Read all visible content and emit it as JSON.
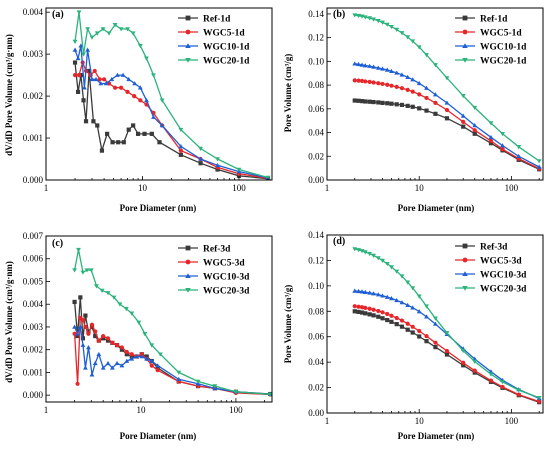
{
  "chart_data": [
    {
      "type": "line",
      "panel": "(a)",
      "xlabel": "Pore Diameter (nm)",
      "ylabel": "dV/dD Pore Volume (cm³/g·nm)",
      "xscale": "log",
      "xlim": [
        1,
        220
      ],
      "ylim": [
        0,
        0.0041
      ],
      "xticks": [
        1,
        10,
        100
      ],
      "yticks": [
        0,
        0.001,
        0.002,
        0.003,
        0.004
      ],
      "ytick_labels": [
        "0.000",
        "0.001",
        "0.002",
        "0.003",
        "0.004"
      ],
      "legend": "top-right",
      "series": [
        {
          "name": "Ref-1d",
          "color": "#3a3a3a",
          "marker": "square",
          "x": [
            2.0,
            2.15,
            2.3,
            2.45,
            2.6,
            2.8,
            3.1,
            3.4,
            3.8,
            4.3,
            4.9,
            5.6,
            6.4,
            7.2,
            8.0,
            9.0,
            10.5,
            12.5,
            15,
            25,
            40,
            60,
            100,
            200
          ],
          "y": [
            0.0028,
            0.0021,
            0.0025,
            0.0019,
            0.0014,
            0.0026,
            0.0014,
            0.0013,
            0.0007,
            0.0011,
            0.0009,
            0.0009,
            0.0009,
            0.0012,
            0.0013,
            0.0011,
            0.0011,
            0.0011,
            0.0009,
            0.0006,
            0.0004,
            0.00025,
            0.0001,
            3e-05
          ]
        },
        {
          "name": "WGC5-1d",
          "color": "#e8262a",
          "marker": "circle",
          "x": [
            2.0,
            2.2,
            2.4,
            2.6,
            2.9,
            3.2,
            3.6,
            4.0,
            4.5,
            5.2,
            6.0,
            7.0,
            8.2,
            9.5,
            11,
            13,
            16,
            25,
            40,
            60,
            100,
            200
          ],
          "y": [
            0.0025,
            0.0025,
            0.0028,
            0.0026,
            0.0025,
            0.0026,
            0.0024,
            0.0024,
            0.0023,
            0.0022,
            0.0022,
            0.0021,
            0.002,
            0.0019,
            0.0018,
            0.0016,
            0.0013,
            0.0007,
            0.0005,
            0.0003,
            0.00015,
            4e-05
          ]
        },
        {
          "name": "WGC10-1d",
          "color": "#1f5fd6",
          "marker": "triangle-up",
          "x": [
            2.0,
            2.15,
            2.3,
            2.5,
            2.7,
            3.0,
            3.3,
            3.7,
            4.2,
            4.8,
            5.5,
            6.3,
            7.2,
            8.3,
            9.5,
            11,
            13,
            16,
            25,
            40,
            60,
            100,
            200
          ],
          "y": [
            0.0031,
            0.0029,
            0.0032,
            0.0022,
            0.0031,
            0.0024,
            0.0024,
            0.0023,
            0.0023,
            0.0024,
            0.0025,
            0.0025,
            0.0024,
            0.0023,
            0.0022,
            0.0019,
            0.0015,
            0.0013,
            0.0008,
            0.0005,
            0.00035,
            0.0002,
            5e-05
          ]
        },
        {
          "name": "WGC20-1d",
          "color": "#2bb37c",
          "marker": "triangle-down",
          "x": [
            2.0,
            2.2,
            2.45,
            2.7,
            3.0,
            3.4,
            3.9,
            4.5,
            5.2,
            6.0,
            7.0,
            8.0,
            9.5,
            11,
            13,
            16,
            25,
            40,
            60,
            100,
            200
          ],
          "y": [
            0.0033,
            0.004,
            0.003,
            0.0036,
            0.0034,
            0.0035,
            0.0036,
            0.0035,
            0.0037,
            0.0036,
            0.0036,
            0.0035,
            0.0032,
            0.0029,
            0.0025,
            0.0019,
            0.0012,
            0.00075,
            0.0005,
            0.00025,
            6e-05
          ]
        }
      ]
    },
    {
      "type": "line",
      "panel": "(b)",
      "xlabel": "Pore Diameter (nm)",
      "ylabel": "Pore Volume (cm³/g)",
      "xscale": "log",
      "xlim": [
        1,
        220
      ],
      "ylim": [
        0,
        0.145
      ],
      "xticks": [
        1,
        10,
        100
      ],
      "yticks": [
        0,
        0.02,
        0.04,
        0.06,
        0.08,
        0.1,
        0.12,
        0.14
      ],
      "ytick_labels": [
        "0.00",
        "0.02",
        "0.04",
        "0.06",
        "0.08",
        "0.10",
        "0.12",
        "0.14"
      ],
      "legend": "top-right",
      "series": [
        {
          "name": "Ref-1d",
          "color": "#3a3a3a",
          "marker": "square",
          "x": [
            2,
            2.2,
            2.4,
            2.6,
            2.9,
            3.2,
            3.6,
            4,
            4.5,
            5,
            5.7,
            6.5,
            7.5,
            8.5,
            10,
            12,
            15,
            20,
            30,
            40,
            60,
            80,
            120,
            200
          ],
          "y": [
            0.067,
            0.0668,
            0.0665,
            0.0662,
            0.066,
            0.0657,
            0.0654,
            0.065,
            0.0647,
            0.0643,
            0.0638,
            0.0633,
            0.0625,
            0.0617,
            0.0604,
            0.0585,
            0.0558,
            0.052,
            0.045,
            0.039,
            0.031,
            0.025,
            0.017,
            0.009
          ]
        },
        {
          "name": "WGC5-1d",
          "color": "#e8262a",
          "marker": "circle",
          "x": [
            2,
            2.2,
            2.4,
            2.6,
            2.9,
            3.2,
            3.6,
            4,
            4.5,
            5,
            5.7,
            6.5,
            7.5,
            8.5,
            10,
            12,
            15,
            20,
            30,
            40,
            60,
            80,
            120,
            200
          ],
          "y": [
            0.084,
            0.0838,
            0.0835,
            0.0831,
            0.0827,
            0.0822,
            0.0816,
            0.081,
            0.0803,
            0.0795,
            0.0785,
            0.0774,
            0.076,
            0.0745,
            0.0722,
            0.0692,
            0.065,
            0.059,
            0.049,
            0.042,
            0.033,
            0.026,
            0.018,
            0.0095
          ]
        },
        {
          "name": "WGC10-1d",
          "color": "#1f5fd6",
          "marker": "triangle-up",
          "x": [
            2,
            2.2,
            2.4,
            2.6,
            2.9,
            3.2,
            3.6,
            4,
            4.5,
            5,
            5.7,
            6.5,
            7.5,
            8.5,
            10,
            12,
            15,
            20,
            30,
            40,
            60,
            80,
            120,
            200
          ],
          "y": [
            0.098,
            0.0975,
            0.097,
            0.0965,
            0.096,
            0.0953,
            0.0945,
            0.0937,
            0.0928,
            0.0917,
            0.0903,
            0.0887,
            0.0867,
            0.0846,
            0.0815,
            0.0775,
            0.072,
            0.065,
            0.054,
            0.046,
            0.036,
            0.029,
            0.02,
            0.011
          ]
        },
        {
          "name": "WGC20-1d",
          "color": "#2bb37c",
          "marker": "triangle-down",
          "x": [
            2,
            2.2,
            2.4,
            2.6,
            2.9,
            3.2,
            3.6,
            4,
            4.5,
            5,
            5.7,
            6.5,
            7.5,
            8.5,
            10,
            12,
            15,
            20,
            30,
            40,
            60,
            80,
            120,
            200
          ],
          "y": [
            0.139,
            0.1385,
            0.138,
            0.1373,
            0.1365,
            0.1355,
            0.1342,
            0.1328,
            0.1311,
            0.1292,
            0.1268,
            0.124,
            0.1205,
            0.117,
            0.112,
            0.1055,
            0.097,
            0.086,
            0.071,
            0.061,
            0.048,
            0.039,
            0.028,
            0.016
          ]
        }
      ]
    },
    {
      "type": "line",
      "panel": "(c)",
      "xlabel": "Pore Diameter (nm)",
      "ylabel": "dV/dD Pore Volume (cm³/g·nm)",
      "xscale": "log",
      "xlim": [
        1,
        240
      ],
      "ylim": [
        -0.0003,
        0.007
      ],
      "xticks": [
        1,
        10,
        100
      ],
      "yticks": [
        0,
        0.001,
        0.002,
        0.003,
        0.004,
        0.005,
        0.006,
        0.007
      ],
      "ytick_labels": [
        "0.000",
        "0.001",
        "0.002",
        "0.003",
        "0.004",
        "0.005",
        "0.006",
        "0.007"
      ],
      "legend": "top-right",
      "series": [
        {
          "name": "Ref-3d",
          "color": "#3a3a3a",
          "marker": "square",
          "x": [
            2.0,
            2.15,
            2.3,
            2.45,
            2.6,
            2.8,
            3.05,
            3.3,
            3.6,
            4.0,
            4.5,
            5.0,
            5.6,
            6.3,
            7.1,
            8.0,
            9.0,
            10.2,
            11.5,
            13,
            15,
            25,
            40,
            60,
            100,
            230
          ],
          "y": [
            0.0041,
            0.0026,
            0.0043,
            0.0025,
            0.0035,
            0.0028,
            0.003,
            0.0026,
            0.0024,
            0.0025,
            0.0024,
            0.0023,
            0.0022,
            0.002,
            0.0018,
            0.0017,
            0.0017,
            0.0018,
            0.0017,
            0.0015,
            0.0012,
            0.0006,
            0.0004,
            0.0003,
            0.00015,
            5e-05
          ]
        },
        {
          "name": "WGC5-3d",
          "color": "#e8262a",
          "marker": "circle",
          "x": [
            2.0,
            2.15,
            2.3,
            2.45,
            2.6,
            2.8,
            3.05,
            3.3,
            3.6,
            4.0,
            4.5,
            5.0,
            5.6,
            6.3,
            7.1,
            8.0,
            9.0,
            10.2,
            11.5,
            13,
            15,
            25,
            40,
            60,
            100,
            230
          ],
          "y": [
            0.0027,
            0.0005,
            0.0034,
            0.0033,
            0.003,
            0.0027,
            0.0031,
            0.0028,
            0.0024,
            0.0026,
            0.0025,
            0.0023,
            0.0022,
            0.0021,
            0.0019,
            0.0018,
            0.0017,
            0.0018,
            0.0016,
            0.0013,
            0.0011,
            0.0006,
            0.0004,
            0.0003,
            0.0001,
            3e-05
          ]
        },
        {
          "name": "WGC10-3d",
          "color": "#1f5fd6",
          "marker": "triangle-up",
          "x": [
            2.0,
            2.15,
            2.3,
            2.45,
            2.6,
            2.8,
            3.05,
            3.3,
            3.6,
            4.0,
            4.5,
            5.0,
            5.6,
            6.3,
            7.1,
            8.0,
            9.0,
            10.2,
            11.5,
            13,
            15,
            25,
            40,
            60,
            100,
            230
          ],
          "y": [
            0.003,
            0.0027,
            0.003,
            0.0022,
            0.0012,
            0.0021,
            0.0009,
            0.0014,
            0.0018,
            0.0012,
            0.0014,
            0.0012,
            0.0014,
            0.0013,
            0.0015,
            0.0016,
            0.0017,
            0.0017,
            0.0016,
            0.0015,
            0.0013,
            0.0007,
            0.0005,
            0.0003,
            0.00015,
            4e-05
          ]
        },
        {
          "name": "WGC20-3d",
          "color": "#2bb37c",
          "marker": "triangle-down",
          "x": [
            2.0,
            2.2,
            2.45,
            2.7,
            3.0,
            3.4,
            3.9,
            4.5,
            5.2,
            6.0,
            7.0,
            8.0,
            9.5,
            11,
            13,
            16,
            25,
            40,
            60,
            100,
            230
          ],
          "y": [
            0.0055,
            0.0064,
            0.0054,
            0.0055,
            0.0055,
            0.0048,
            0.0046,
            0.0045,
            0.0043,
            0.004,
            0.0038,
            0.0036,
            0.0032,
            0.0027,
            0.0022,
            0.0018,
            0.001,
            0.0006,
            0.0004,
            0.00015,
            4e-05
          ]
        }
      ]
    },
    {
      "type": "line",
      "panel": "(d)",
      "xlabel": "Pore Diameter (nm)",
      "ylabel": "Pore Volume (cm³/g)",
      "xscale": "log",
      "xlim": [
        1,
        220
      ],
      "ylim": [
        0,
        0.14
      ],
      "xticks": [
        1,
        10,
        100
      ],
      "yticks": [
        0,
        0.02,
        0.04,
        0.06,
        0.08,
        0.1,
        0.12,
        0.14
      ],
      "ytick_labels": [
        "0.00",
        "0.02",
        "0.04",
        "0.06",
        "0.08",
        "0.10",
        "0.12",
        "0.14"
      ],
      "legend": "top-right",
      "series": [
        {
          "name": "Ref-3d",
          "color": "#3a3a3a",
          "marker": "square",
          "x": [
            2,
            2.2,
            2.4,
            2.6,
            2.9,
            3.2,
            3.6,
            4,
            4.5,
            5,
            5.7,
            6.5,
            7.5,
            8.5,
            10,
            12,
            15,
            20,
            30,
            40,
            60,
            80,
            120,
            200
          ],
          "y": [
            0.08,
            0.0795,
            0.079,
            0.0784,
            0.0776,
            0.0768,
            0.0757,
            0.0745,
            0.0731,
            0.0717,
            0.0699,
            0.0679,
            0.0655,
            0.0633,
            0.0602,
            0.0565,
            0.0518,
            0.046,
            0.0375,
            0.0318,
            0.0245,
            0.0198,
            0.014,
            0.0085
          ]
        },
        {
          "name": "WGC5-3d",
          "color": "#e8262a",
          "marker": "circle",
          "x": [
            2,
            2.2,
            2.4,
            2.6,
            2.9,
            3.2,
            3.6,
            4,
            4.5,
            5,
            5.7,
            6.5,
            7.5,
            8.5,
            10,
            12,
            15,
            20,
            30,
            40,
            60,
            80,
            120,
            200
          ],
          "y": [
            0.084,
            0.0836,
            0.0832,
            0.0827,
            0.082,
            0.0812,
            0.0802,
            0.0792,
            0.0779,
            0.0765,
            0.0747,
            0.0727,
            0.0702,
            0.0678,
            0.0645,
            0.0605,
            0.0553,
            0.0488,
            0.0395,
            0.0333,
            0.0255,
            0.0205,
            0.0145,
            0.009
          ]
        },
        {
          "name": "WGC10-3d",
          "color": "#1f5fd6",
          "marker": "triangle-up",
          "x": [
            2,
            2.2,
            2.4,
            2.6,
            2.9,
            3.2,
            3.6,
            4,
            4.5,
            5,
            5.7,
            6.5,
            7.5,
            8.5,
            10,
            12,
            15,
            20,
            30,
            40,
            60,
            80,
            120,
            200
          ],
          "y": [
            0.096,
            0.0957,
            0.0954,
            0.095,
            0.0945,
            0.0939,
            0.0931,
            0.0922,
            0.0912,
            0.0901,
            0.0886,
            0.0869,
            0.0848,
            0.0828,
            0.0798,
            0.0757,
            0.07,
            0.062,
            0.0505,
            0.0425,
            0.0325,
            0.0258,
            0.0185,
            0.0115
          ]
        },
        {
          "name": "WGC20-3d",
          "color": "#2bb37c",
          "marker": "triangle-down",
          "x": [
            2,
            2.2,
            2.4,
            2.6,
            2.9,
            3.2,
            3.6,
            4,
            4.5,
            5,
            5.7,
            6.5,
            7.5,
            8.5,
            10,
            12,
            15,
            20,
            30,
            40,
            60,
            80,
            120,
            200
          ],
          "y": [
            0.129,
            0.1283,
            0.1275,
            0.1266,
            0.1253,
            0.1238,
            0.1219,
            0.1199,
            0.1174,
            0.1148,
            0.1114,
            0.1076,
            0.1028,
            0.0983,
            0.0918,
            0.084,
            0.0745,
            0.063,
            0.049,
            0.0405,
            0.0305,
            0.0245,
            0.018,
            0.012
          ]
        }
      ]
    }
  ]
}
